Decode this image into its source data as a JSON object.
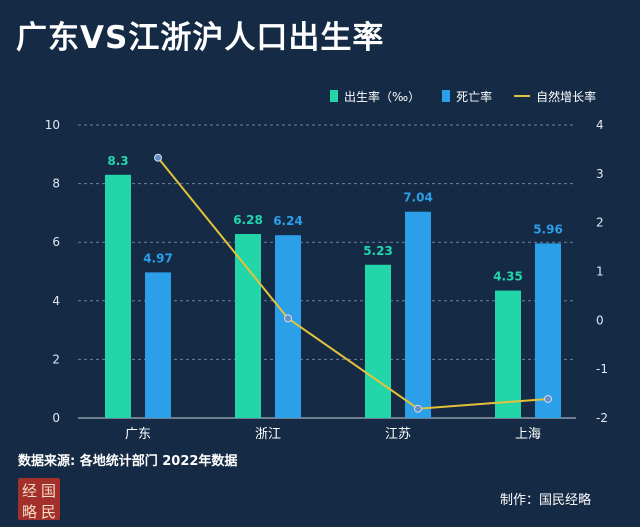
{
  "title": "广东VS江浙沪人口出生率",
  "colors": {
    "background": "#152a44",
    "birth": "#22d6aa",
    "death": "#2b9fe8",
    "natural": "#e3c13a",
    "grid": "#6d829a"
  },
  "chart_data": {
    "type": "bar",
    "categories": [
      "广东",
      "浙江",
      "江苏",
      "上海"
    ],
    "series": [
      {
        "name": "出生率（‰）",
        "type": "bar",
        "axis": "left",
        "values": [
          8.3,
          6.28,
          5.23,
          4.35
        ],
        "labels": [
          "8.3",
          "6.28",
          "5.23",
          "4.35"
        ]
      },
      {
        "name": "死亡率",
        "type": "bar",
        "axis": "left",
        "values": [
          4.97,
          6.24,
          7.04,
          5.96
        ],
        "labels": [
          "4.97",
          "6.24",
          "7.04",
          "5.96"
        ]
      },
      {
        "name": "自然增长率",
        "type": "line",
        "axis": "right",
        "values": [
          3.33,
          0.04,
          -1.81,
          -1.61
        ]
      }
    ],
    "ylim_left": [
      0,
      10
    ],
    "yticks_left": [
      "0",
      "2",
      "4",
      "6",
      "8",
      "10"
    ],
    "ylim_right": [
      -2,
      4
    ],
    "yticks_right": [
      "-2",
      "-1",
      "0",
      "1",
      "2",
      "3",
      "4"
    ],
    "grid": true,
    "legend_position": "top-right"
  },
  "source": "数据来源: 各地统计部门 2022年数据",
  "seal_chars": [
    "经",
    "国",
    "略",
    "民"
  ],
  "credit": "制作：国民经略"
}
